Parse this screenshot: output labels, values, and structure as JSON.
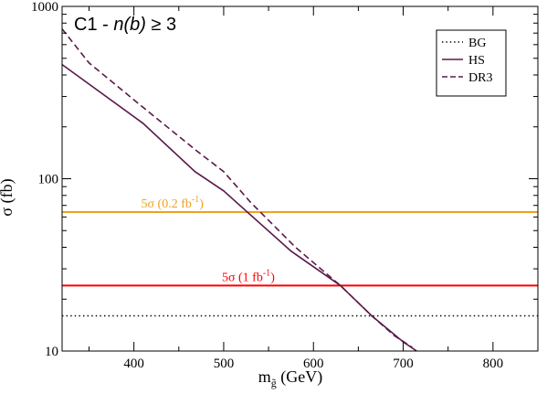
{
  "chart_data": {
    "type": "line",
    "title_parts": {
      "prefix": "C1 - ",
      "italic": "n(b)",
      "suffix": " ≥ 3"
    },
    "xlabel_main": "m",
    "xlabel_sub": "g̃",
    "xlabel_unit": " (GeV)",
    "ylabel": "σ  (fb)",
    "xlim": [
      320,
      850
    ],
    "ylim": [
      10,
      1000
    ],
    "yscale": "log",
    "xticks": [
      400,
      500,
      600,
      700,
      800
    ],
    "yticks": [
      10,
      100,
      1000
    ],
    "legend_position": "top-right",
    "colors": {
      "hs": "#5a1a4a",
      "dr3": "#5a1a4a",
      "bg": "#000000",
      "orange": "#f0a020",
      "red": "#ff0000"
    },
    "series": [
      {
        "name": "BG",
        "style": "dotted",
        "x": [
          320,
          850
        ],
        "y": [
          16,
          16
        ]
      },
      {
        "name": "HS",
        "style": "solid",
        "x": [
          320,
          410,
          468,
          500,
          575,
          630,
          665,
          700,
          715
        ],
        "y": [
          460,
          210,
          110,
          85,
          38,
          24,
          16,
          11.3,
          10
        ]
      },
      {
        "name": "DR3",
        "style": "dashed",
        "x": [
          320,
          350,
          410,
          470,
          500,
          530,
          580,
          630,
          665,
          690,
          710
        ],
        "y": [
          740,
          470,
          260,
          145,
          110,
          73,
          40,
          24,
          16,
          12.3,
          10.5
        ]
      }
    ],
    "hlines": [
      {
        "y": 64,
        "color": "orange",
        "label_pre": "5σ (0.2 fb",
        "label_sup": "-1",
        "label_post": ")",
        "label_x": 408
      },
      {
        "y": 24,
        "color": "red",
        "label_pre": "5σ (1 fb",
        "label_sup": "-1",
        "label_post": ")",
        "label_x": 498
      }
    ]
  }
}
